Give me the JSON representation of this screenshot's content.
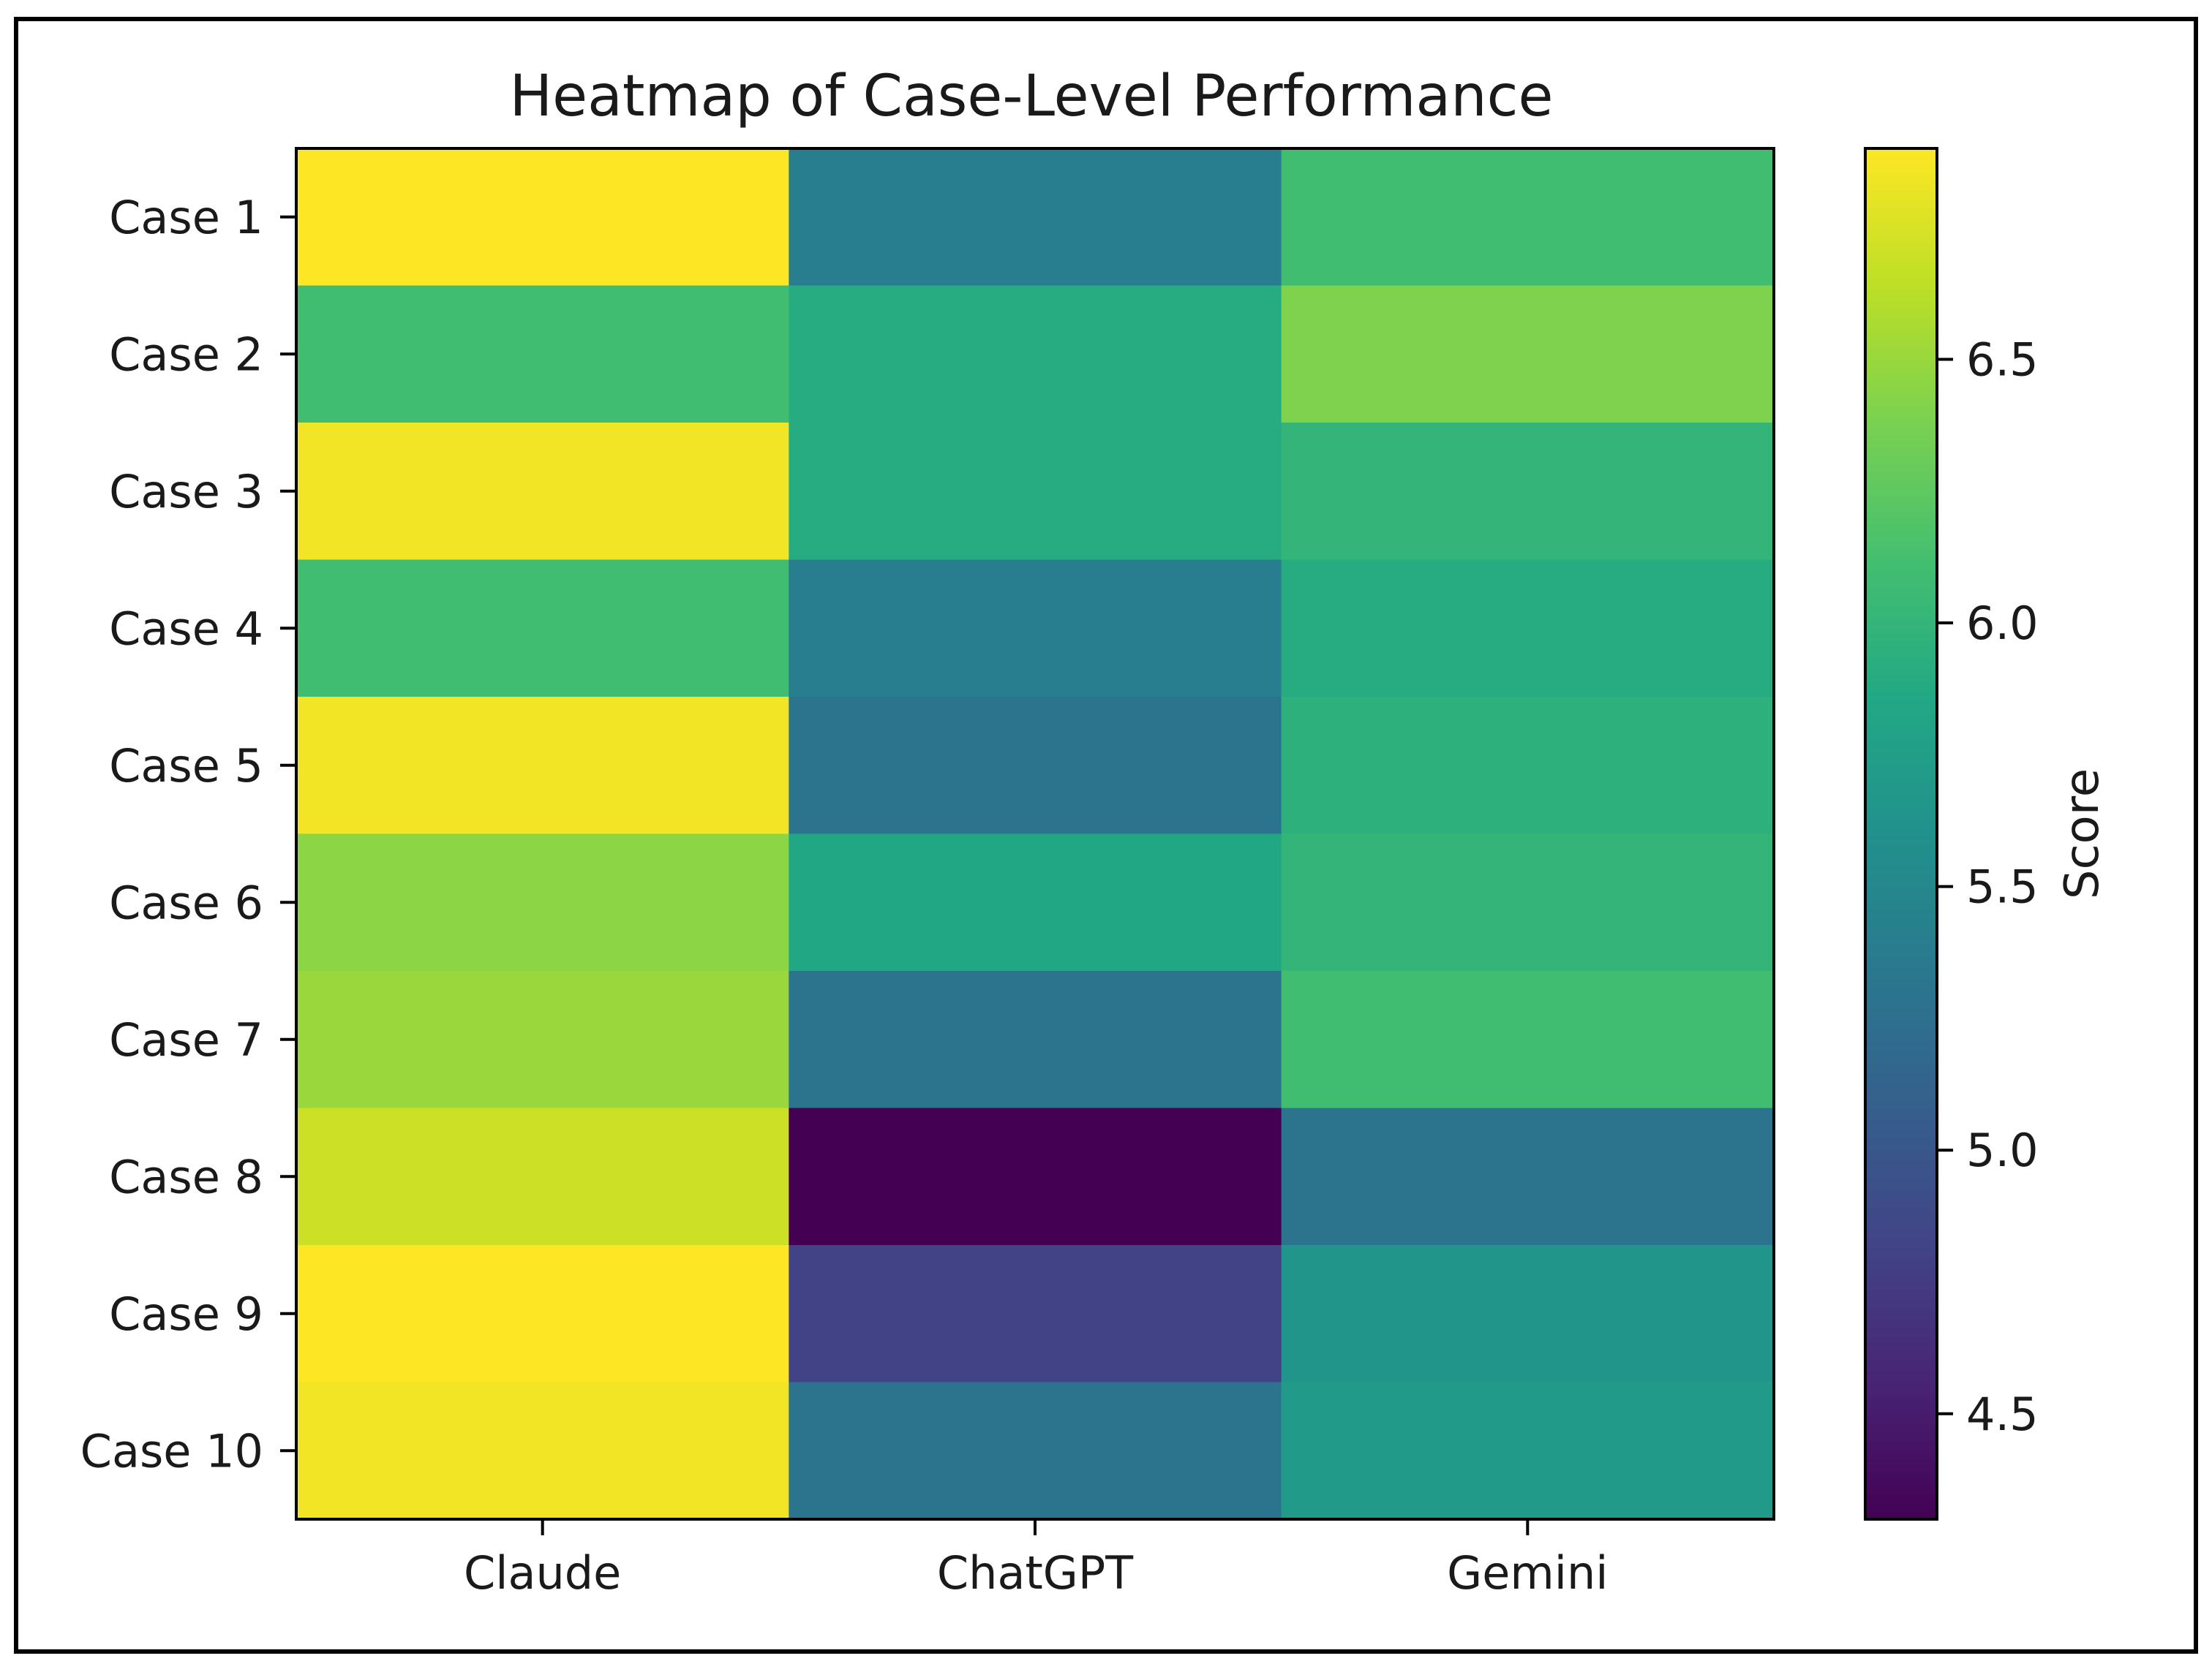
{
  "chart_data": {
    "type": "heatmap",
    "title": "Heatmap of Case-Level Performance",
    "columns": [
      "Claude",
      "ChatGPT",
      "Gemini"
    ],
    "rows": [
      "Case 1",
      "Case 2",
      "Case 3",
      "Case 4",
      "Case 5",
      "Case 6",
      "Case 7",
      "Case 8",
      "Case 9",
      "Case 10"
    ],
    "values": [
      [
        6.9,
        5.4,
        6.1
      ],
      [
        6.1,
        5.9,
        6.4
      ],
      [
        6.85,
        5.9,
        6.0
      ],
      [
        6.1,
        5.4,
        5.9
      ],
      [
        6.85,
        5.3,
        5.95
      ],
      [
        6.45,
        5.85,
        6.0
      ],
      [
        6.5,
        5.3,
        6.1
      ],
      [
        6.7,
        4.3,
        5.3
      ],
      [
        6.9,
        4.8,
        5.65
      ],
      [
        6.85,
        5.3,
        5.7
      ]
    ],
    "colorbar": {
      "label": "Score",
      "range": [
        4.3,
        6.9
      ],
      "ticks": [
        4.5,
        5.0,
        5.5,
        6.0,
        6.5
      ],
      "tick_labels": [
        "4.5",
        "5.0",
        "5.5",
        "6.0",
        "6.5"
      ],
      "colormap": "viridis"
    }
  }
}
